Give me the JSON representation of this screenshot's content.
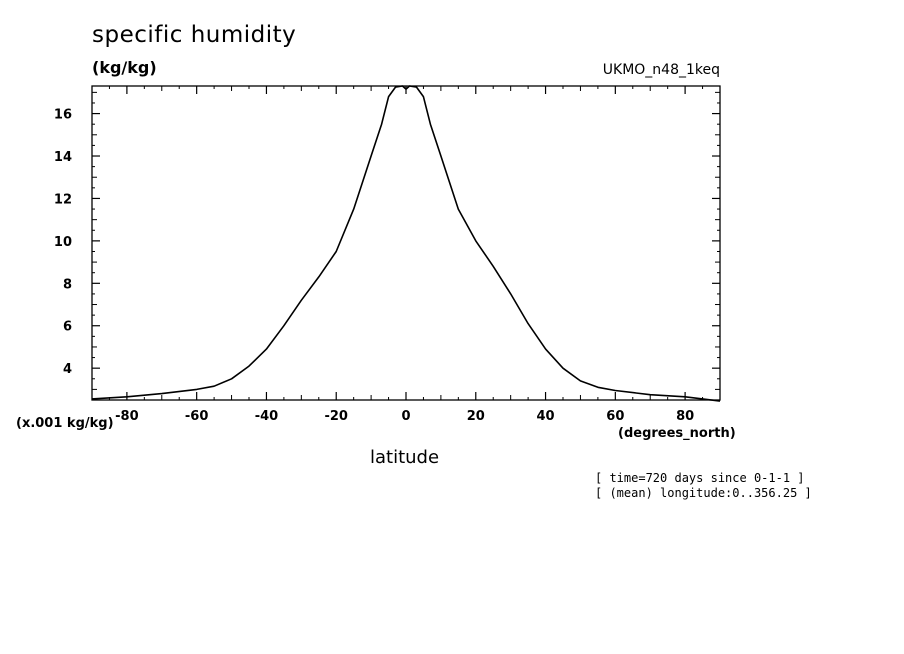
{
  "header": {
    "title": "specific humidity",
    "units": "(kg/kg)",
    "dataset": "UKMO_n48_1keq"
  },
  "axes": {
    "y_scale_label": "(x.001 kg/kg)",
    "x_units": "(degrees_north)",
    "x_label": "latitude"
  },
  "notes": {
    "line1": "[ time=720 days since 0-1-1 ]",
    "line2": "[ (mean) longitude:0..356.25 ]"
  },
  "chart_data": {
    "type": "line",
    "title": "specific humidity",
    "xlabel": "latitude",
    "ylabel": "(kg/kg)",
    "xlim": [
      -90,
      90
    ],
    "ylim": [
      2.5,
      17.3
    ],
    "xticks": [
      -80,
      -60,
      -40,
      -20,
      0,
      20,
      40,
      60,
      80
    ],
    "yticks": [
      4,
      6,
      8,
      10,
      12,
      14,
      16
    ],
    "xtick_labels": [
      "-80",
      "-60",
      "-40",
      "-20",
      "0",
      "20",
      "40",
      "60",
      "80"
    ],
    "ytick_labels": [
      "4",
      "6",
      "8",
      "10",
      "12",
      "14",
      "16"
    ],
    "grid": false,
    "series": [
      {
        "x": [
          -90,
          -80,
          -70,
          -60,
          -55,
          -50,
          -45,
          -40,
          -35,
          -30,
          -25,
          -20,
          -15,
          -10,
          -7,
          -5,
          -3,
          -1,
          0,
          1,
          3,
          5,
          7,
          10,
          15,
          20,
          25,
          30,
          35,
          40,
          45,
          50,
          55,
          60,
          70,
          80,
          90
        ],
        "y": [
          2.55,
          2.65,
          2.8,
          3.0,
          3.15,
          3.5,
          4.1,
          4.9,
          6.0,
          7.2,
          8.3,
          9.5,
          11.5,
          14.0,
          15.5,
          16.8,
          17.25,
          17.3,
          17.15,
          17.3,
          17.25,
          16.8,
          15.5,
          14.0,
          11.5,
          10.0,
          8.8,
          7.5,
          6.1,
          4.9,
          4.0,
          3.4,
          3.1,
          2.95,
          2.75,
          2.65,
          2.45
        ]
      }
    ]
  }
}
